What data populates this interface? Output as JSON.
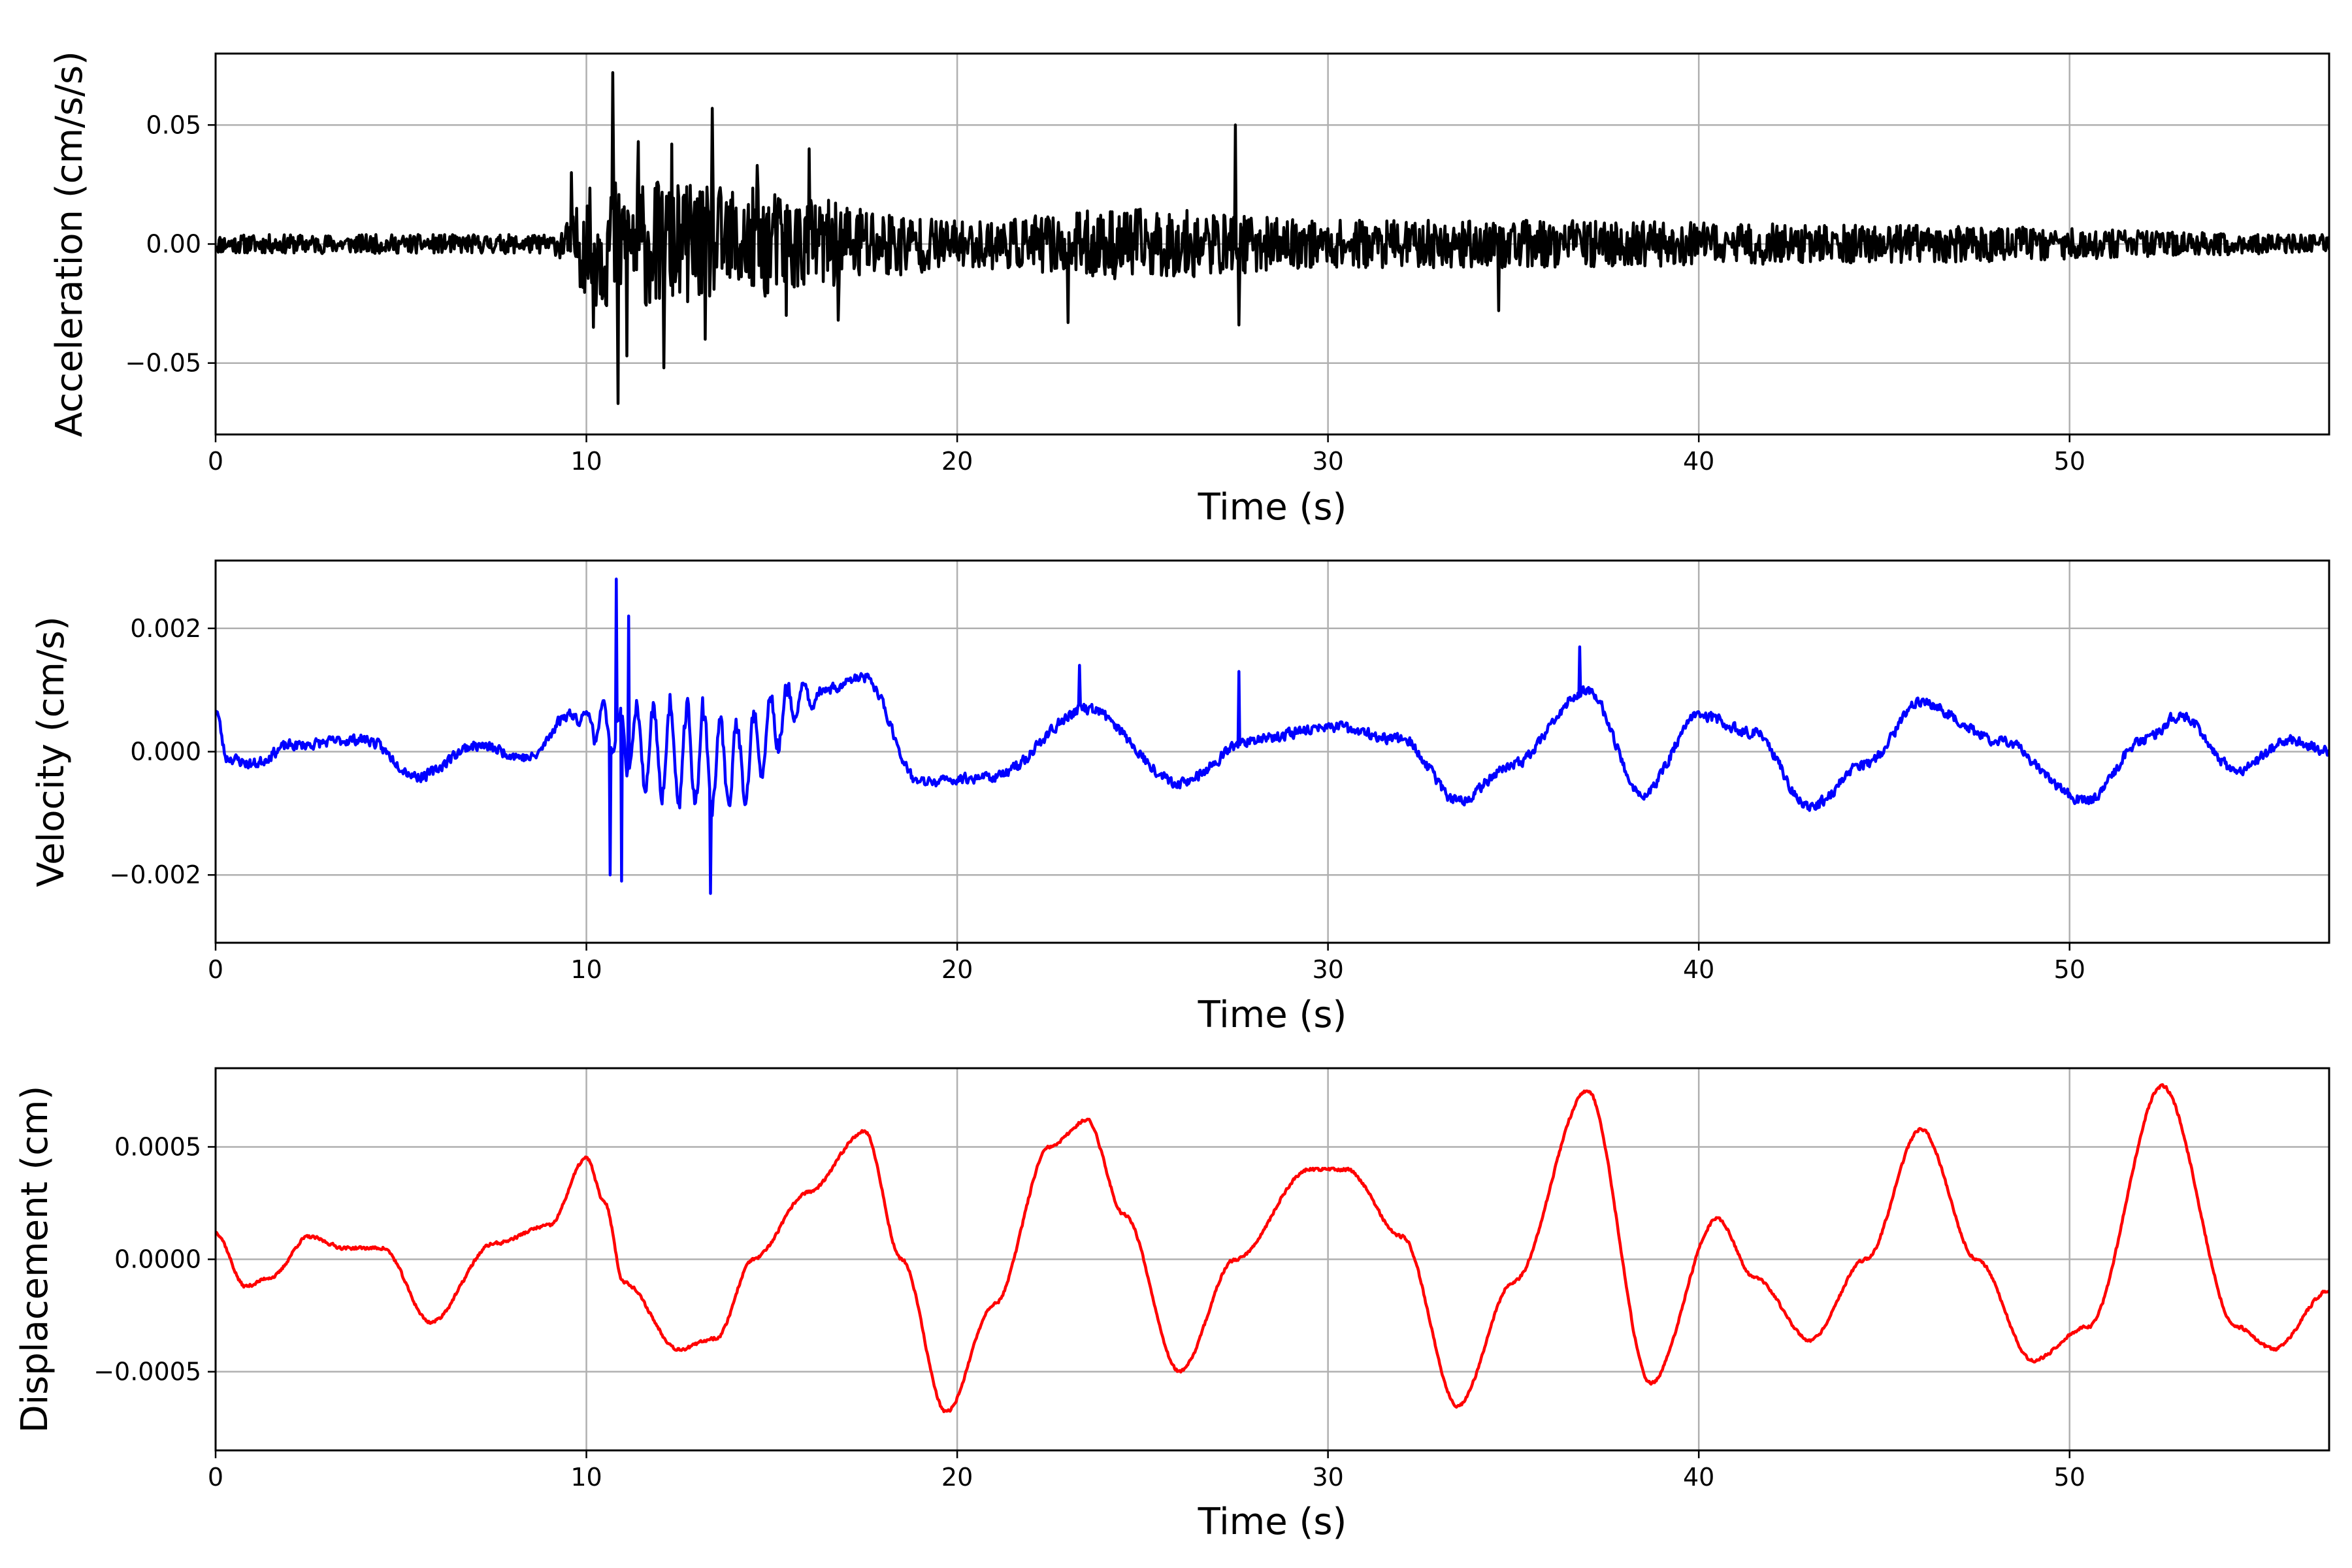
{
  "chart_data": [
    {
      "type": "line",
      "series": [
        {
          "color": "#000000",
          "duration": 57,
          "noise_amp": 0.0045,
          "seed": 11
        }
      ],
      "events": [
        {
          "t": 10.7,
          "v": 0.072
        },
        {
          "t": 10.85,
          "v": -0.067
        },
        {
          "t": 11.1,
          "v": -0.047
        },
        {
          "t": 11.4,
          "v": 0.043
        },
        {
          "t": 12.1,
          "v": -0.052
        },
        {
          "t": 12.3,
          "v": 0.042
        },
        {
          "t": 13.4,
          "v": 0.057
        },
        {
          "t": 13.2,
          "v": -0.04
        },
        {
          "t": 14.6,
          "v": 0.033
        },
        {
          "t": 16.0,
          "v": 0.04
        },
        {
          "t": 16.8,
          "v": -0.032
        },
        {
          "t": 10.2,
          "v": -0.035
        },
        {
          "t": 27.5,
          "v": 0.05
        },
        {
          "t": 27.6,
          "v": -0.034
        },
        {
          "t": 23.0,
          "v": -0.033
        },
        {
          "t": 34.6,
          "v": -0.028
        },
        {
          "t": 9.6,
          "v": 0.03
        },
        {
          "t": 15.4,
          "v": -0.03
        }
      ],
      "envelope": [
        {
          "t": 0,
          "a": 0.004
        },
        {
          "t": 9,
          "a": 0.004
        },
        {
          "t": 10.5,
          "a": 0.028
        },
        {
          "t": 14,
          "a": 0.024
        },
        {
          "t": 17,
          "a": 0.018
        },
        {
          "t": 20,
          "a": 0.01
        },
        {
          "t": 25,
          "a": 0.015
        },
        {
          "t": 30,
          "a": 0.01
        },
        {
          "t": 35,
          "a": 0.01
        },
        {
          "t": 45,
          "a": 0.008
        },
        {
          "t": 57,
          "a": 0.004
        }
      ],
      "xlabel": "Time (s)",
      "ylabel": "Acceleration (cm/s/s)",
      "xlim": [
        0,
        57
      ],
      "ylim": [
        -0.08,
        0.08
      ],
      "x_ticks": [
        0,
        10,
        20,
        30,
        40,
        50
      ],
      "x_tick_labels": [
        "0",
        "10",
        "20",
        "30",
        "40",
        "50"
      ],
      "y_ticks": [
        -0.05,
        0.0,
        0.05
      ],
      "y_tick_labels": [
        "−0.05",
        "0.00",
        "0.05"
      ],
      "grid": true
    },
    {
      "type": "line",
      "series": [
        {
          "color": "#0000ff",
          "duration": 57,
          "noise_amp": 0.00012,
          "seed": 23
        }
      ],
      "trend": [
        {
          "t": 0,
          "v": 0.0007
        },
        {
          "t": 0.3,
          "v": -0.0001
        },
        {
          "t": 1,
          "v": -0.0002
        },
        {
          "t": 2,
          "v": 0.0001
        },
        {
          "t": 4,
          "v": 0.0002
        },
        {
          "t": 5.5,
          "v": -0.0004
        },
        {
          "t": 7,
          "v": 0.0001
        },
        {
          "t": 8.5,
          "v": -0.0001
        },
        {
          "t": 9.5,
          "v": 0.0006
        },
        {
          "t": 12,
          "v": 0.0
        },
        {
          "t": 14,
          "v": -0.0002
        },
        {
          "t": 16,
          "v": 0.0009
        },
        {
          "t": 17.5,
          "v": 0.0012
        },
        {
          "t": 19,
          "v": -0.0005
        },
        {
          "t": 21,
          "v": -0.0004
        },
        {
          "t": 23.5,
          "v": 0.0007
        },
        {
          "t": 26,
          "v": -0.0005
        },
        {
          "t": 28,
          "v": 0.0002
        },
        {
          "t": 30,
          "v": 0.0004
        },
        {
          "t": 32,
          "v": 0.0002
        },
        {
          "t": 33.5,
          "v": -0.0008
        },
        {
          "t": 35,
          "v": -0.0002
        },
        {
          "t": 37,
          "v": 0.001
        },
        {
          "t": 38.5,
          "v": -0.0007
        },
        {
          "t": 40,
          "v": 0.0006
        },
        {
          "t": 41.5,
          "v": 0.0003
        },
        {
          "t": 43,
          "v": -0.0009
        },
        {
          "t": 44.5,
          "v": -0.0002
        },
        {
          "t": 46,
          "v": 0.0008
        },
        {
          "t": 48,
          "v": 0.0002
        },
        {
          "t": 50.5,
          "v": -0.0008
        },
        {
          "t": 52,
          "v": 0.0002
        },
        {
          "t": 53,
          "v": 0.0006
        },
        {
          "t": 54.5,
          "v": -0.0003
        },
        {
          "t": 56,
          "v": 0.0002
        },
        {
          "t": 57,
          "v": 0.0
        }
      ],
      "oscillation": {
        "t_start": 9.5,
        "t_end": 16.5,
        "amp": 0.0018,
        "period": 0.45
      },
      "events": [
        {
          "t": 10.8,
          "v": 0.0028
        },
        {
          "t": 10.65,
          "v": -0.002
        },
        {
          "t": 10.95,
          "v": -0.0021
        },
        {
          "t": 11.15,
          "v": 0.0022
        },
        {
          "t": 13.35,
          "v": -0.0023
        },
        {
          "t": 27.6,
          "v": 0.0013
        },
        {
          "t": 36.8,
          "v": 0.0017
        },
        {
          "t": 23.3,
          "v": 0.0014
        }
      ],
      "xlabel": "Time (s)",
      "ylabel": "Velocity (cm/s)",
      "xlim": [
        0,
        57
      ],
      "ylim": [
        -0.0031,
        0.0031
      ],
      "x_ticks": [
        0,
        10,
        20,
        30,
        40,
        50
      ],
      "x_tick_labels": [
        "0",
        "10",
        "20",
        "30",
        "40",
        "50"
      ],
      "y_ticks": [
        -0.002,
        0.0,
        0.002
      ],
      "y_tick_labels": [
        "−0.002",
        "0.000",
        "0.002"
      ],
      "grid": true
    },
    {
      "type": "line",
      "series": [
        {
          "color": "#ff0000",
          "duration": 57,
          "noise_amp": 1e-05,
          "seed": 37
        }
      ],
      "trend": [
        {
          "t": 0,
          "v": 0.00012
        },
        {
          "t": 0.8,
          "v": -0.00012
        },
        {
          "t": 1.5,
          "v": -8e-05
        },
        {
          "t": 2.5,
          "v": 0.0001
        },
        {
          "t": 3.5,
          "v": 5e-05
        },
        {
          "t": 4.5,
          "v": 5e-05
        },
        {
          "t": 5.8,
          "v": -0.00028
        },
        {
          "t": 7.5,
          "v": 7e-05
        },
        {
          "t": 9,
          "v": 0.00015
        },
        {
          "t": 10.0,
          "v": 0.00045
        },
        {
          "t": 10.5,
          "v": 0.00025
        },
        {
          "t": 11,
          "v": -0.0001
        },
        {
          "t": 12.5,
          "v": -0.0004
        },
        {
          "t": 13.5,
          "v": -0.00035
        },
        {
          "t": 14.5,
          "v": 0.0
        },
        {
          "t": 16,
          "v": 0.0003
        },
        {
          "t": 17.5,
          "v": 0.00057
        },
        {
          "t": 18.5,
          "v": 0.0
        },
        {
          "t": 19.7,
          "v": -0.00068
        },
        {
          "t": 21,
          "v": -0.0002
        },
        {
          "t": 22.5,
          "v": 0.0005
        },
        {
          "t": 23.5,
          "v": 0.00062
        },
        {
          "t": 24.5,
          "v": 0.0002
        },
        {
          "t": 26.0,
          "v": -0.0005
        },
        {
          "t": 27.5,
          "v": 0.0
        },
        {
          "t": 29.5,
          "v": 0.0004
        },
        {
          "t": 30.5,
          "v": 0.0004
        },
        {
          "t": 32,
          "v": 0.0001
        },
        {
          "t": 33.5,
          "v": -0.00065
        },
        {
          "t": 35,
          "v": -0.0001
        },
        {
          "t": 37.0,
          "v": 0.00075
        },
        {
          "t": 38.7,
          "v": -0.00055
        },
        {
          "t": 40.5,
          "v": 0.00018
        },
        {
          "t": 41.5,
          "v": -8e-05
        },
        {
          "t": 43,
          "v": -0.00036
        },
        {
          "t": 44.5,
          "v": 0.0
        },
        {
          "t": 46.0,
          "v": 0.00058
        },
        {
          "t": 47.5,
          "v": 0.0
        },
        {
          "t": 49,
          "v": -0.00045
        },
        {
          "t": 50.5,
          "v": -0.0003
        },
        {
          "t": 52.5,
          "v": 0.00077
        },
        {
          "t": 54.5,
          "v": -0.0003
        },
        {
          "t": 55.5,
          "v": -0.0004
        },
        {
          "t": 57,
          "v": -0.00014
        }
      ],
      "xlabel": "Time (s)",
      "ylabel": "Displacement (cm)",
      "xlim": [
        0,
        57
      ],
      "ylim": [
        -0.00085,
        0.00085
      ],
      "x_ticks": [
        0,
        10,
        20,
        30,
        40,
        50
      ],
      "x_tick_labels": [
        "0",
        "10",
        "20",
        "30",
        "40",
        "50"
      ],
      "y_ticks": [
        -0.0005,
        0.0,
        0.0005
      ],
      "y_tick_labels": [
        "−0.0005",
        "0.0000",
        "0.0005"
      ],
      "grid": true
    }
  ]
}
